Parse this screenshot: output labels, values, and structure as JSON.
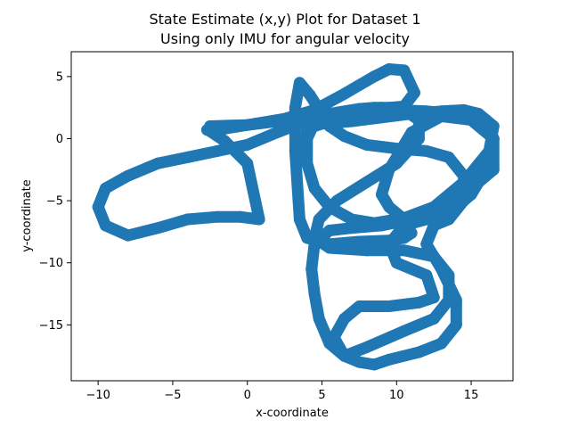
{
  "chart_data": {
    "type": "scatter",
    "title": "State Estimate (x,y) Plot for Dataset 1",
    "subtitle": "Using only IMU for angular velocity",
    "xlabel": "x-coordinate",
    "ylabel": "y-coordinate",
    "xlim": [
      -11.8,
      17.8
    ],
    "ylim": [
      -19.5,
      7.0
    ],
    "xticks": [
      -10,
      -5,
      0,
      5,
      10,
      15
    ],
    "yticks": [
      5,
      0,
      -5,
      -10,
      -15
    ],
    "xtick_labels": [
      "−10",
      "−5",
      "0",
      "5",
      "10",
      "15"
    ],
    "ytick_labels": [
      "5",
      "0",
      "−5",
      "−10",
      "−15"
    ],
    "grid": false,
    "color": "#1f77b4",
    "series": [
      {
        "x": [
          -2.5,
          0,
          2,
          4.5,
          7,
          9,
          10.5,
          11.5,
          11.5,
          10,
          8,
          6,
          4.8,
          4.5,
          5.5,
          8,
          10.5,
          12.5,
          13.5,
          13.5,
          12.5,
          10.5,
          8,
          6.5,
          5.8,
          6.5,
          7.5,
          9.5,
          11.5,
          12.5,
          12,
          10,
          9.5,
          10.5,
          12,
          13.5,
          15,
          16,
          16.5,
          16,
          15,
          14,
          12,
          10,
          8,
          6,
          4.5,
          3.5,
          2,
          0,
          -2,
          -4,
          -6,
          -8,
          -9.5,
          -10,
          -9.5,
          -8,
          -6,
          -4,
          -2,
          -0.5,
          0.8,
          0,
          -1.5,
          -2.5
        ],
        "y": [
          1,
          1.1,
          1.4,
          1.9,
          2.2,
          2.5,
          2.3,
          1.5,
          0,
          -2,
          -3.5,
          -5,
          -6.5,
          -8,
          -8.8,
          -9,
          -9,
          -9.5,
          -11,
          -13,
          -14.5,
          -15.5,
          -16.8,
          -17.5,
          -16,
          -14.5,
          -13.5,
          -13.5,
          -13.2,
          -12.8,
          -11,
          -10,
          -8.5,
          -7,
          -6.5,
          -6,
          -4.5,
          -2.5,
          0,
          1,
          1.5,
          2,
          2.2,
          2.3,
          2.1,
          1.9,
          1.6,
          1.2,
          0.5,
          -0.5,
          -1,
          -1.5,
          -2,
          -3,
          -4,
          -5.5,
          -7,
          -7.8,
          -7.2,
          -6.5,
          -6.3,
          -6.3,
          -6.5,
          -2,
          -0.2,
          0.6
        ]
      },
      {
        "x": [
          3.5,
          4,
          5.5,
          7.5,
          9.5,
          10.5,
          11,
          10.5,
          9.5,
          9,
          9.5,
          11,
          13,
          15,
          16.5,
          16.5,
          15,
          13,
          11,
          9,
          7,
          5.5,
          4.5,
          4.3,
          4.5,
          4.8,
          5.5,
          6.5,
          7.5,
          8.5,
          9,
          9.5,
          11.5,
          13,
          14,
          14,
          13,
          12,
          12.5,
          13.5,
          14.5,
          14.5,
          13.5,
          12,
          10,
          8,
          6.5,
          5.5,
          5,
          4.2,
          3.5,
          3.2,
          3.2,
          3.5
        ],
        "y": [
          -6.5,
          -8,
          -8.5,
          -8.3,
          -8.2,
          -8,
          -7.6,
          -6.5,
          -5.5,
          -4.5,
          -2.5,
          0.5,
          1.8,
          1.5,
          0,
          -2.5,
          -4,
          -5.5,
          -6.5,
          -7,
          -7.2,
          -7.4,
          -8.5,
          -10.5,
          -12.5,
          -14.5,
          -16.5,
          -17.5,
          -18,
          -18.2,
          -18,
          -17.8,
          -17.2,
          -16.5,
          -15,
          -13,
          -10.5,
          -8.5,
          -7,
          -6.5,
          -5,
          -3,
          -1.5,
          -1,
          -0.8,
          -0.5,
          0.2,
          1,
          2,
          3.5,
          4.5,
          2.5,
          -1,
          -6.5
        ]
      },
      {
        "x": [
          -2.7,
          -1.5,
          0.5,
          2.5,
          4.5,
          6.5,
          8.5,
          9.5,
          10.5,
          11.2,
          10.5,
          9.5,
          8.5,
          7.5,
          6,
          4.5,
          4,
          4,
          4.5,
          5.5,
          7,
          8.5,
          10.5,
          12.5,
          14.5,
          16.2,
          16.5,
          15.5,
          14.5,
          13,
          11,
          9,
          7,
          5,
          4,
          3.8
        ],
        "y": [
          0.7,
          0.8,
          1.2,
          1.6,
          2.3,
          3.6,
          5,
          5.6,
          5.5,
          3.7,
          2.6,
          2.5,
          2.5,
          2.4,
          2.1,
          1.3,
          0,
          -2,
          -4,
          -5.5,
          -6.5,
          -6.8,
          -6.4,
          -5.5,
          -3.5,
          -1,
          1,
          2,
          2.3,
          2.2,
          2,
          1.7,
          1.4,
          1.2,
          0.8,
          -1.5
        ]
      }
    ]
  }
}
